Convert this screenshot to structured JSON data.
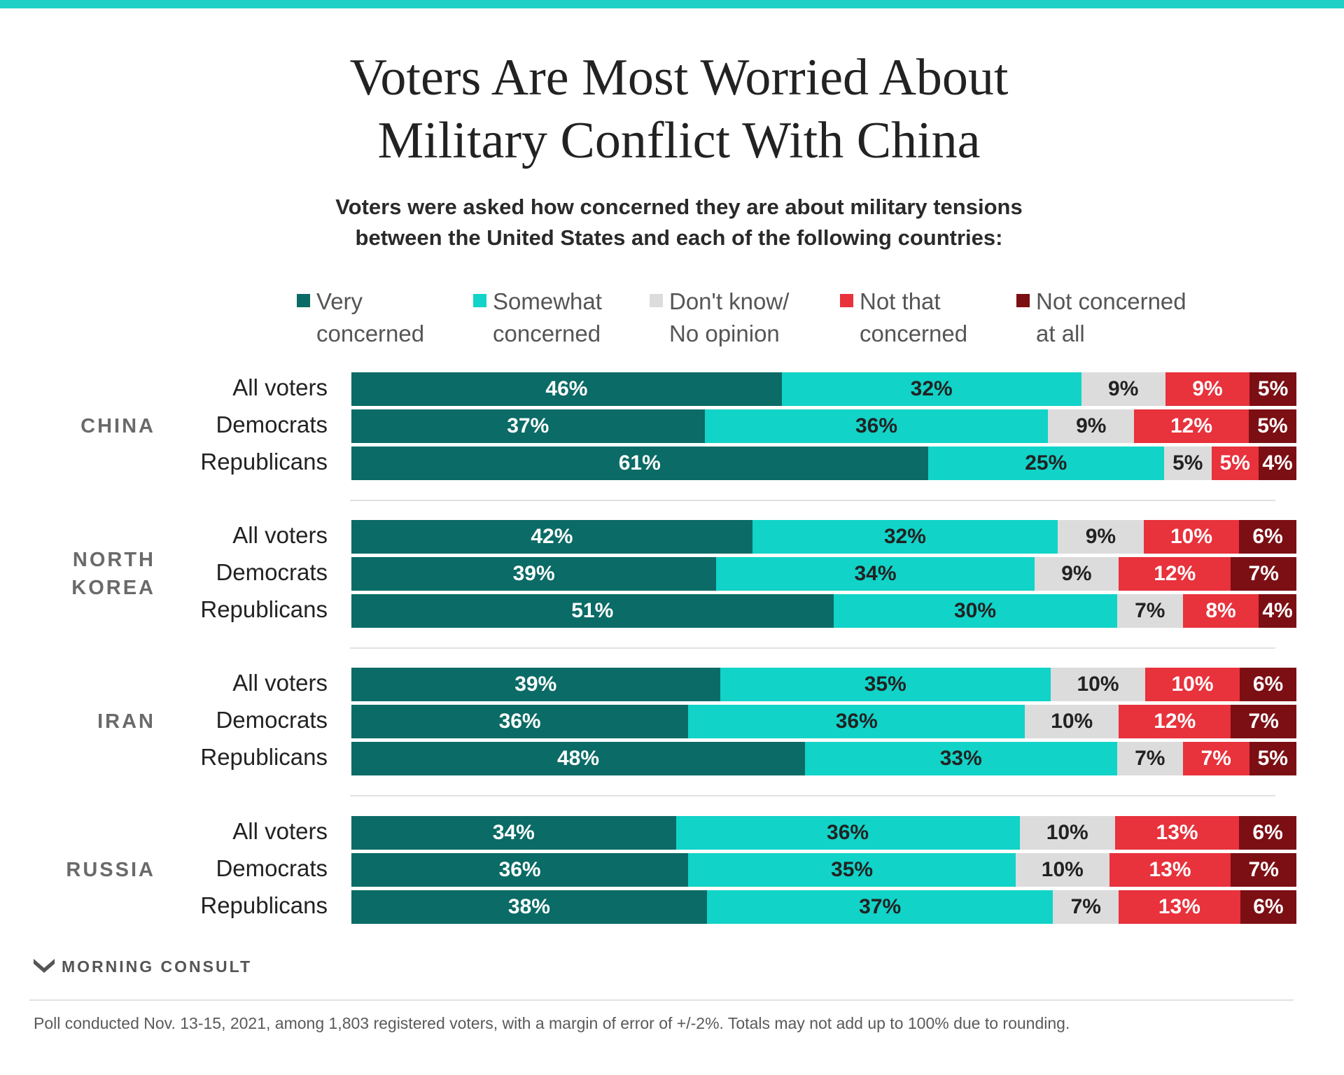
{
  "title": "Voters Are Most Worried About\nMilitary Conflict With China",
  "subtitle": "Voters were asked how concerned they are about military tensions\nbetween the United States and each of the following countries:",
  "legend": [
    {
      "label": "Very\nconcerned",
      "color": "#0b6b66"
    },
    {
      "label": "Somewhat\nconcerned",
      "color": "#11d3c8"
    },
    {
      "label": "Don't know/\nNo opinion",
      "color": "#dcdcdc"
    },
    {
      "label": "Not that\nconcerned",
      "color": "#e8323c"
    },
    {
      "label": "Not concerned\nat all",
      "color": "#7c0f14"
    }
  ],
  "label_colors": [
    "#ffffff",
    "#222222",
    "#222222",
    "#ffffff",
    "#ffffff"
  ],
  "chart_data": {
    "type": "bar",
    "orientation": "horizontal",
    "stacked": true,
    "series_names": [
      "Very concerned",
      "Somewhat concerned",
      "Don't know/ No opinion",
      "Not that concerned",
      "Not concerned at all"
    ],
    "groups": [
      {
        "name": "CHINA",
        "rows": [
          {
            "label": "All voters",
            "values": [
              46,
              32,
              9,
              9,
              5
            ]
          },
          {
            "label": "Democrats",
            "values": [
              37,
              36,
              9,
              12,
              5
            ]
          },
          {
            "label": "Republicans",
            "values": [
              61,
              25,
              5,
              5,
              4
            ]
          }
        ]
      },
      {
        "name": "NORTH\nKOREA",
        "rows": [
          {
            "label": "All voters",
            "values": [
              42,
              32,
              9,
              10,
              6
            ]
          },
          {
            "label": "Democrats",
            "values": [
              39,
              34,
              9,
              12,
              7
            ]
          },
          {
            "label": "Republicans",
            "values": [
              51,
              30,
              7,
              8,
              4
            ]
          }
        ]
      },
      {
        "name": "IRAN",
        "rows": [
          {
            "label": "All voters",
            "values": [
              39,
              35,
              10,
              10,
              6
            ]
          },
          {
            "label": "Democrats",
            "values": [
              36,
              36,
              10,
              12,
              7
            ]
          },
          {
            "label": "Republicans",
            "values": [
              48,
              33,
              7,
              7,
              5
            ]
          }
        ]
      },
      {
        "name": "RUSSIA",
        "rows": [
          {
            "label": "All voters",
            "values": [
              34,
              36,
              10,
              13,
              6
            ]
          },
          {
            "label": "Democrats",
            "values": [
              36,
              35,
              10,
              13,
              7
            ]
          },
          {
            "label": "Republicans",
            "values": [
              38,
              37,
              7,
              13,
              6
            ]
          }
        ]
      }
    ],
    "value_suffix": "%",
    "legend_position": "top"
  },
  "logo_text": "MORNING CONSULT",
  "footnote": "Poll conducted Nov. 13-15, 2021, among 1,803 registered voters, with a margin of error of +/-2%. Totals may not add up to 100% due to rounding."
}
